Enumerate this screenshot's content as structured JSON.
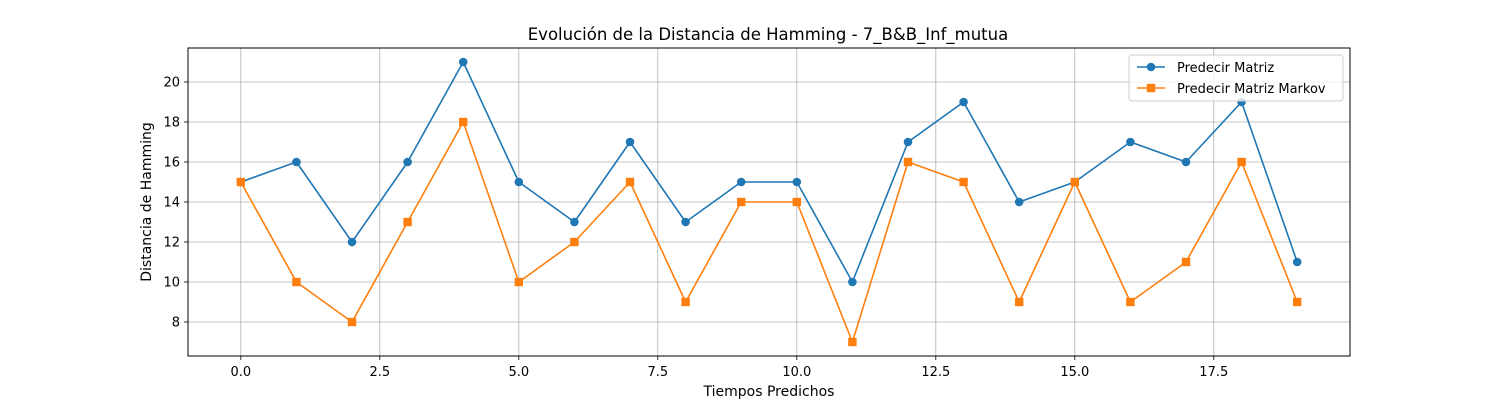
{
  "chart_data": {
    "type": "line",
    "title": "Evolución de la Distancia de Hamming - 7_B&B_Inf_mutua",
    "xlabel": "Tiempos Predichos",
    "ylabel": "Distancia de Hamming",
    "x": [
      0,
      1,
      2,
      3,
      4,
      5,
      6,
      7,
      8,
      9,
      10,
      11,
      12,
      13,
      14,
      15,
      16,
      17,
      18,
      19
    ],
    "xlim": [
      -0.95,
      19.95
    ],
    "ylim": [
      6.3,
      21.7
    ],
    "xticks": [
      0.0,
      2.5,
      5.0,
      7.5,
      10.0,
      12.5,
      15.0,
      17.5
    ],
    "xtick_labels": [
      "0.0",
      "2.5",
      "5.0",
      "7.5",
      "10.0",
      "12.5",
      "15.0",
      "17.5"
    ],
    "yticks": [
      8,
      10,
      12,
      14,
      16,
      18,
      20
    ],
    "ytick_labels": [
      "8",
      "10",
      "12",
      "14",
      "16",
      "18",
      "20"
    ],
    "grid": true,
    "legend_position": "top-right",
    "series": [
      {
        "name": "Predecir Matriz",
        "color": "#1f77b4",
        "marker": "circle",
        "values": [
          15,
          16,
          12,
          16,
          21,
          15,
          13,
          17,
          13,
          15,
          15,
          10,
          17,
          19,
          14,
          15,
          17,
          16,
          19,
          11
        ]
      },
      {
        "name": "Predecir Matriz Markov",
        "color": "#ff7f0e",
        "marker": "square",
        "values": [
          15,
          10,
          8,
          13,
          18,
          10,
          12,
          15,
          9,
          14,
          14,
          7,
          16,
          15,
          9,
          15,
          9,
          11,
          16,
          9
        ]
      }
    ]
  }
}
